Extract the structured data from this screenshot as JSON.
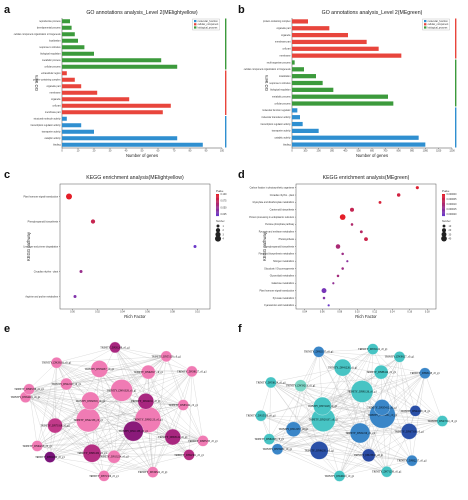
{
  "chart_data": [
    {
      "panel": "a",
      "type": "bar",
      "title": "GO annotations analysis_Level 2(MElightyellow)",
      "xlabel": "Number of genes",
      "ylabel": "GO term",
      "xlim": [
        0,
        100
      ],
      "xticks": [
        "0",
        "10",
        "20",
        "30",
        "40",
        "50",
        "60",
        "70",
        "80",
        "90",
        "100"
      ],
      "legend": [
        "molecular_function",
        "cellular_component",
        "biological_process"
      ],
      "colors": {
        "molecular_function": "#2f8fd0",
        "cellular_component": "#e8453c",
        "biological_process": "#3c9a3c"
      },
      "categories": [
        "reproductive process",
        "developmental process",
        "cellular component organization or biogenesis",
        "localization",
        "response to stimulus",
        "biological regulation",
        "metabolic process",
        "cellular process",
        "extracellular region",
        "protein-containing complex",
        "organelle part",
        "membrane",
        "organelle",
        "cell part",
        "membrane part",
        "structural molecule activity",
        "transcription regulator activity",
        "transporter activity",
        "catalytic activity",
        "binding"
      ],
      "groups": [
        "biological_process",
        "biological_process",
        "biological_process",
        "biological_process",
        "biological_process",
        "biological_process",
        "biological_process",
        "biological_process",
        "cellular_component",
        "cellular_component",
        "cellular_component",
        "cellular_component",
        "cellular_component",
        "cellular_component",
        "cellular_component",
        "molecular_function",
        "molecular_function",
        "molecular_function",
        "molecular_function",
        "molecular_function"
      ],
      "values": [
        5,
        6,
        8,
        10,
        14,
        20,
        62,
        72,
        3,
        8,
        12,
        22,
        42,
        68,
        63,
        3,
        12,
        20,
        72,
        88
      ]
    },
    {
      "panel": "b",
      "type": "bar",
      "title": "GO annotations analysis_Level 2(MEgreen)",
      "xlabel": "Number of genes",
      "ylabel": "GO term",
      "xlim": [
        0,
        1200
      ],
      "xticks": [
        "0",
        "100",
        "200",
        "300",
        "400",
        "500",
        "600",
        "700",
        "800",
        "900",
        "1000",
        "1100",
        "1200"
      ],
      "legend": [
        "molecular_function",
        "cellular_component",
        "biological_process"
      ],
      "colors": {
        "molecular_function": "#2f8fd0",
        "cellular_component": "#e8453c",
        "biological_process": "#3c9a3c"
      },
      "categories": [
        "protein-containing complex",
        "organelle part",
        "organelle",
        "membrane part",
        "cell part",
        "membrane",
        "multi-organism process",
        "cellular component organization or biogenesis",
        "localization",
        "response to stimulus",
        "biological regulation",
        "metabolic process",
        "cellular process",
        "molecular function regulator",
        "molecular transducer activity",
        "transcription regulator activity",
        "transporter activity",
        "catalytic activity",
        "binding"
      ],
      "groups": [
        "cellular_component",
        "cellular_component",
        "cellular_component",
        "cellular_component",
        "cellular_component",
        "cellular_component",
        "biological_process",
        "biological_process",
        "biological_process",
        "biological_process",
        "biological_process",
        "biological_process",
        "biological_process",
        "molecular_function",
        "molecular_function",
        "molecular_function",
        "molecular_function",
        "molecular_function",
        "molecular_function"
      ],
      "values": [
        120,
        280,
        420,
        560,
        650,
        820,
        20,
        90,
        180,
        230,
        310,
        720,
        760,
        40,
        60,
        80,
        200,
        950,
        1000
      ]
    },
    {
      "panel": "c",
      "type": "scatter",
      "title": "KEGG enrichment analysis(MElightyellow)",
      "xlabel": "Rich Factor",
      "ylabel": "KEGG pathway",
      "xlim": [
        0.0,
        0.1
      ],
      "xticks": [
        "0.00",
        "0.02",
        "0.04",
        "0.06",
        "0.08",
        "0.10"
      ],
      "color_legend_title": "Pvalue",
      "color_ticks": [
        "0.100",
        "0.075",
        "0.050",
        "0.025"
      ],
      "size_legend_title": "Number",
      "size_ticks": [
        "1",
        "2",
        "3",
        "4"
      ],
      "categories": [
        "Plant hormone signal transduction",
        "Phenylpropanoid biosynthesis",
        "Limonene and pinene degradation",
        "Circadian rhythm - plant",
        "Arginine and proline metabolism"
      ],
      "x": [
        0.006,
        0.022,
        0.09,
        0.014,
        0.01
      ],
      "number": [
        4,
        2,
        1,
        1,
        1
      ],
      "pvalue": [
        0.01,
        0.03,
        0.09,
        0.06,
        0.075
      ]
    },
    {
      "panel": "d",
      "type": "scatter",
      "title": "KEGG enrichment analysis(MEgreen)",
      "xlabel": "Rich Factor",
      "ylabel": "KEGG pathway",
      "xlim": [
        0.0,
        0.3
      ],
      "xticks": [
        "0.04",
        "0.06",
        "0.08",
        "0.10",
        "0.12",
        "0.14",
        "0.16",
        "0.18"
      ],
      "color_legend_title": "Pvalue",
      "color_ticks": [
        "0.000000",
        "0.000005",
        "0.000010",
        "0.000015",
        "0.000020"
      ],
      "size_legend_title": "Number",
      "size_ticks": [
        "10",
        "20",
        "30",
        "40"
      ],
      "categories": [
        "Carbon fixation in photosynthetic organisms",
        "Circadian rhythm - plant",
        "Glyoxylate and dicarboxylate metabolism",
        "Carotenoid biosynthesis",
        "Protein processing in endoplasmic reticulum",
        "Pentose phosphate pathway",
        "Pyruvate and methane metabolism",
        "Photosynthesis",
        "Phenylpropanoid biosynthesis",
        "Flavonoid biosynthesis metabolism",
        "Nitrogen metabolism",
        "Glycolysis / Gluconeogenesis",
        "Glycerolipid metabolism",
        "Galactose metabolism",
        "Plant hormone signal transduction",
        "Pyruvate metabolism",
        "Cyanoamino acid metabolism"
      ],
      "x": [
        0.26,
        0.22,
        0.18,
        0.12,
        0.1,
        0.12,
        0.14,
        0.15,
        0.09,
        0.1,
        0.11,
        0.1,
        0.09,
        0.08,
        0.06,
        0.06,
        0.07
      ],
      "number": [
        12,
        15,
        10,
        20,
        40,
        8,
        10,
        18,
        25,
        8,
        6,
        8,
        8,
        6,
        30,
        8,
        6
      ],
      "pvalue": [
        2e-06,
        4e-06,
        3e-06,
        6e-06,
        1e-06,
        9e-06,
        8e-06,
        5e-06,
        1e-05,
        1.2e-05,
        1.5e-05,
        1.2e-05,
        1.1e-05,
        1.4e-05,
        1.8e-05,
        1.6e-05,
        2e-05
      ]
    },
    {
      "panel": "e",
      "type": "network",
      "nodes": [
        {
          "label": "TRINITY_DN92123_c0_g1",
          "color": "#f07bb4"
        },
        {
          "label": "TRINITY_DN42136_c0_g1",
          "color": "#f07bb4"
        },
        {
          "label": "TRINITY_DN91328_c0_g1",
          "color": "#f07bb4"
        },
        {
          "label": "TRINITY_DN11138_c0_g1",
          "color": "#8a1a7a"
        },
        {
          "label": "TRINITY_DN82319_c0_g1",
          "color": "#f07bb4"
        },
        {
          "label": "TRINITY_DN24191_c0_g1",
          "color": "#a8267f"
        },
        {
          "label": "TRINITY_DN81432_c0_g1",
          "color": "#b42e82"
        },
        {
          "label": "TRINITY_DN59237_c0_g1",
          "color": "#f07bb4"
        },
        {
          "label": "TRINITY_DN63124_c0_g1",
          "color": "#a8267f"
        },
        {
          "label": "TRINITY_DN73319_c0_g1",
          "color": "#c23a8a"
        },
        {
          "label": "TRINITY_DN92817_c0_g1",
          "color": "#f07bb4"
        },
        {
          "label": "TRINITY_DN13224_c0_g1",
          "color": "#f07bb4"
        },
        {
          "label": "TRINITY_DN42119_c0_g1",
          "color": "#f07bb4"
        },
        {
          "label": "TRINITY_DN83124_c0_g1",
          "color": "#f07bb4"
        },
        {
          "label": "TRINITY_DN51036_c0_g1",
          "color": "#7a137a"
        },
        {
          "label": "TRINITY_DN31208_c0_g1",
          "color": "#a8267f"
        },
        {
          "label": "TRINITY_DN92361_c0_g1",
          "color": "#b42e82"
        },
        {
          "label": "TRINITY_DN64219_c0_g1",
          "color": "#f07bb4"
        },
        {
          "label": "TRINITY_DN38127_c0_g1",
          "color": "#f07bb4"
        },
        {
          "label": "TRINITY_DN71326_c0_g1",
          "color": "#f07bb4"
        },
        {
          "label": "TRINITY_DN28116_c0_g1",
          "color": "#f07bb4"
        },
        {
          "label": "TRINITY_DN87233_c0_g1",
          "color": "#f07bb4"
        },
        {
          "label": "TRINITY_DN94218_c0_g1",
          "color": "#f07bb4"
        },
        {
          "label": "TRINITY_DN55129_c0_g1",
          "color": "#f07bb4"
        },
        {
          "label": "TRINITY_DN19324_c0_g1",
          "color": "#f07bb4"
        },
        {
          "label": "TRINITY_DN67238_c0_g1",
          "color": "#f07bb4"
        }
      ]
    },
    {
      "panel": "f",
      "type": "network",
      "nodes": [
        {
          "label": "TRINITY_DN83231_c0_g1",
          "color": "#3a86c8"
        },
        {
          "label": "TRINITY_DN28137_c0_g1",
          "color": "#47c4c4"
        },
        {
          "label": "TRINITY_DN91126_c0_g1",
          "color": "#47c4c4"
        },
        {
          "label": "TRINITY_DN52219_c0_g1",
          "color": "#3a86c8"
        },
        {
          "label": "TRINITY_DN74128_c0_g1",
          "color": "#47c4c4"
        },
        {
          "label": "TRINITY_DN35412_c0_g1",
          "color": "#3a86c8"
        },
        {
          "label": "TRINITY_DN96231_c0_g1",
          "color": "#2a50a8"
        },
        {
          "label": "TRINITY_DN41226_c0_g1",
          "color": "#47c4c4"
        },
        {
          "label": "TRINITY_DN67319_c0_g1",
          "color": "#2a50a8"
        },
        {
          "label": "TRINITY_DN12237_c0_g1",
          "color": "#3a86c8"
        },
        {
          "label": "TRINITY_DN88124_c0_g1",
          "color": "#47c4c4"
        },
        {
          "label": "TRINITY_DN23318_c0_g1",
          "color": "#2a4aa4"
        },
        {
          "label": "TRINITY_DN59213_c0_g1",
          "color": "#7ed8c8"
        },
        {
          "label": "TRINITY_DN44126_c0_g1",
          "color": "#2a50a8"
        },
        {
          "label": "TRINITY_DN76231_c0_g1",
          "color": "#3a86c8"
        },
        {
          "label": "TRINITY_DN31124_c0_g1",
          "color": "#47c4c4"
        },
        {
          "label": "TRINITY_DN82217_c0_g1",
          "color": "#3a86c8"
        },
        {
          "label": "TRINITY_DN15326_c0_g1",
          "color": "#47c4c4"
        },
        {
          "label": "TRINITY_DN93128_c0_g1",
          "color": "#3a86c8"
        },
        {
          "label": "TRINITY_DN48219_c0_g1",
          "color": "#47c4c4"
        },
        {
          "label": "TRINITY_DN62137_c0_g1",
          "color": "#3a86c8"
        },
        {
          "label": "TRINITY_DN27214_c0_g1",
          "color": "#47c4c4"
        },
        {
          "label": "TRINITY_DN84326_c0_g1",
          "color": "#47c4c4"
        },
        {
          "label": "TRINITY_DN39127_c0_g1",
          "color": "#47c4c4"
        },
        {
          "label": "TRINITY_DN71238_c0_g1",
          "color": "#47c4c4"
        },
        {
          "label": "TRINITY_DN56124_c0_g1",
          "color": "#47c4c4"
        }
      ]
    }
  ]
}
